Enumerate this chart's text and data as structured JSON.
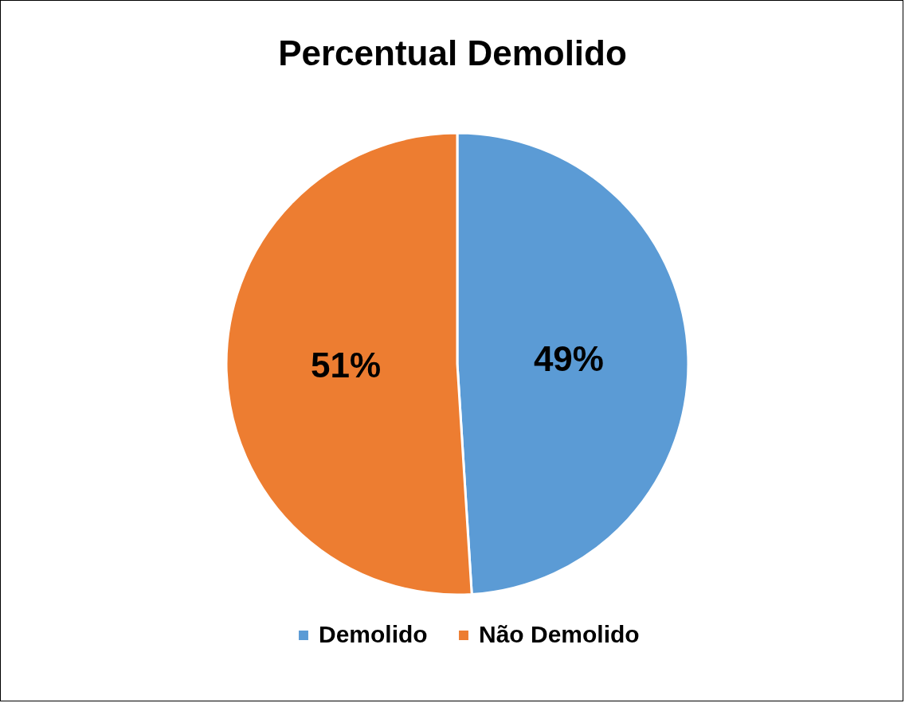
{
  "chart_data": {
    "type": "pie",
    "title": "Percentual Demolido",
    "categories": [
      "Demolido",
      "Não Demolido"
    ],
    "values": [
      49,
      51
    ],
    "colors": [
      "#5b9bd5",
      "#ed7d31"
    ],
    "value_labels": [
      "49%",
      "51%"
    ],
    "legend": "bottom"
  }
}
